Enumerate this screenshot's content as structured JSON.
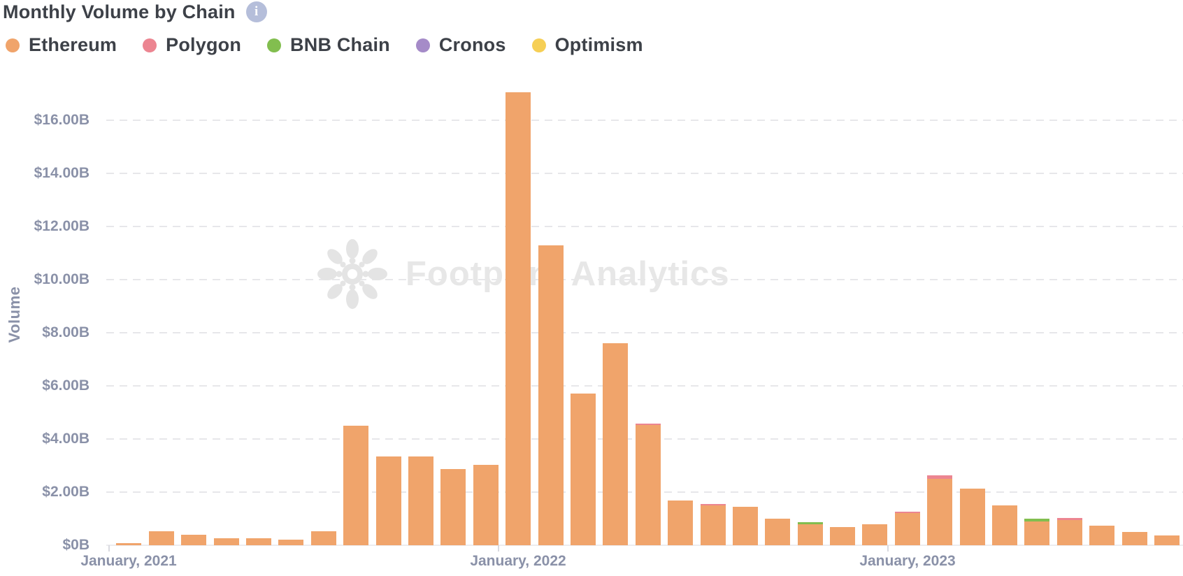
{
  "header": {
    "title": "Monthly Volume by Chain",
    "info_icon_glyph": "i"
  },
  "legend": {
    "items": [
      {
        "label": "Ethereum",
        "color": "#f0a46b"
      },
      {
        "label": "Polygon",
        "color": "#ec8591"
      },
      {
        "label": "BNB Chain",
        "color": "#82be4f"
      },
      {
        "label": "Cronos",
        "color": "#a58bc8"
      },
      {
        "label": "Optimism",
        "color": "#f6cf55"
      }
    ]
  },
  "watermark": {
    "text": "Footprint Analytics"
  },
  "y_axis": {
    "label": "Volume",
    "tick_labels": [
      "$16.00B",
      "$14.00B",
      "$12.00B",
      "$10.00B",
      "$8.00B",
      "$6.00B",
      "$4.00B",
      "$2.00B",
      "$0B"
    ],
    "tick_values": [
      16,
      14,
      12,
      10,
      8,
      6,
      4,
      2,
      0
    ]
  },
  "x_axis": {
    "tick_labels": [
      {
        "label": "January, 2021",
        "month_index": 0
      },
      {
        "label": "January, 2022",
        "month_index": 12
      },
      {
        "label": "January, 2023",
        "month_index": 24
      }
    ]
  },
  "chart_data": {
    "type": "bar",
    "stacked": true,
    "title": "Monthly Volume by Chain",
    "xlabel": "",
    "ylabel": "Volume",
    "unit": "billion USD",
    "ylim": [
      0,
      17.4
    ],
    "grid": "horizontal-dashed",
    "legend_position": "top-left",
    "categories": [
      "Jan 2021",
      "Feb 2021",
      "Mar 2021",
      "Apr 2021",
      "May 2021",
      "Jun 2021",
      "Jul 2021",
      "Aug 2021",
      "Sep 2021",
      "Oct 2021",
      "Nov 2021",
      "Dec 2021",
      "Jan 2022",
      "Feb 2022",
      "Mar 2022",
      "Apr 2022",
      "May 2022",
      "Jun 2022",
      "Jul 2022",
      "Aug 2022",
      "Sep 2022",
      "Oct 2022",
      "Nov 2022",
      "Dec 2022",
      "Jan 2023",
      "Feb 2023",
      "Mar 2023",
      "Apr 2023",
      "May 2023",
      "Jun 2023",
      "Jul 2023",
      "Aug 2023",
      "Sep 2023"
    ],
    "series": [
      {
        "name": "Ethereum",
        "color": "#f0a46b",
        "values": [
          0.08,
          0.53,
          0.4,
          0.27,
          0.27,
          0.21,
          0.53,
          4.5,
          3.35,
          3.33,
          2.88,
          3.03,
          17.05,
          11.3,
          5.71,
          7.61,
          4.53,
          1.68,
          1.51,
          1.46,
          1.0,
          0.78,
          0.68,
          0.8,
          1.2,
          2.5,
          2.14,
          1.51,
          0.9,
          0.95,
          0.74,
          0.5,
          0.37
        ]
      },
      {
        "name": "Polygon",
        "color": "#ec8591",
        "values": [
          0,
          0,
          0,
          0,
          0,
          0,
          0,
          0,
          0,
          0,
          0,
          0,
          0,
          0,
          0,
          0,
          0.05,
          0,
          0.02,
          0,
          0,
          0,
          0,
          0,
          0.04,
          0.13,
          0,
          0,
          0,
          0.09,
          0,
          0,
          0
        ]
      },
      {
        "name": "BNB Chain",
        "color": "#82be4f",
        "values": [
          0,
          0,
          0,
          0,
          0,
          0,
          0,
          0,
          0,
          0,
          0,
          0,
          0,
          0,
          0,
          0,
          0,
          0,
          0,
          0,
          0,
          0.08,
          0,
          0,
          0,
          0,
          0,
          0,
          0.1,
          0,
          0,
          0,
          0
        ]
      },
      {
        "name": "Cronos",
        "color": "#a58bc8",
        "values": [
          0,
          0,
          0,
          0,
          0,
          0,
          0,
          0,
          0,
          0,
          0,
          0,
          0,
          0,
          0,
          0,
          0,
          0,
          0,
          0,
          0,
          0,
          0,
          0,
          0,
          0,
          0,
          0,
          0,
          0,
          0,
          0,
          0
        ]
      },
      {
        "name": "Optimism",
        "color": "#f6cf55",
        "values": [
          0,
          0,
          0,
          0,
          0,
          0,
          0,
          0,
          0,
          0,
          0,
          0,
          0,
          0,
          0,
          0,
          0,
          0,
          0,
          0,
          0,
          0,
          0,
          0,
          0,
          0,
          0,
          0,
          0,
          0,
          0,
          0,
          0
        ]
      }
    ]
  }
}
